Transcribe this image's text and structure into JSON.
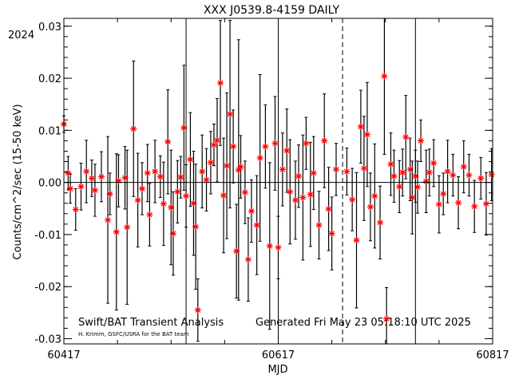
{
  "chart_data": {
    "type": "scatter",
    "title": "XXX J0539.8-4159 DAILY",
    "year_label": "2024",
    "xlabel": "MJD",
    "ylabel": "Counts/cm^2/sec (15-50 keV)",
    "xlim": [
      60417,
      60817
    ],
    "ylim": [
      -0.031,
      0.0315
    ],
    "x_ticks": [
      60417,
      60617,
      60817
    ],
    "x_tick_labels": [
      "60417",
      "60617",
      "60817"
    ],
    "y_ticks": [
      -0.03,
      -0.02,
      -0.01,
      0.0,
      0.01,
      0.02,
      0.03
    ],
    "y_tick_labels": [
      "-0.03",
      "-0.02",
      "-0.01",
      "0.00",
      "0.01",
      "0.02",
      "0.03"
    ],
    "grid": false,
    "marker_color": "#ff0000",
    "errorbar_color": "#000000",
    "reference_lines": [
      {
        "x": 60531,
        "style": "solid"
      },
      {
        "x": 60617,
        "style": "solid"
      },
      {
        "x": 60677,
        "style": "dashed"
      },
      {
        "x": 60745,
        "style": "solid"
      }
    ],
    "series": [
      {
        "x": [
          60417,
          60421,
          60423,
          60428,
          60433,
          60438,
          60443,
          60446,
          60452,
          60458,
          60460,
          60466,
          60468,
          60474,
          60476,
          60482,
          60486,
          60490,
          60495,
          60497,
          60502,
          60507,
          60510,
          60514,
          60517,
          60519,
          60523,
          60526,
          60529,
          60531,
          60535,
          60538,
          60540,
          60542,
          60546,
          60550,
          60554,
          60557,
          60560,
          60563,
          60566,
          60569,
          60572,
          60575,
          60578,
          60580,
          60582,
          60586,
          60589,
          60592,
          60597,
          60600,
          60605,
          60609,
          60614,
          60617,
          60621,
          60625,
          60628,
          60633,
          60636,
          60640,
          60643,
          60647,
          60650,
          60655,
          60660,
          60664,
          60667,
          60671,
          60681,
          60686,
          60690,
          60694,
          60697,
          60700,
          60703,
          60707,
          60712,
          60716,
          60718,
          60722,
          60725,
          60730,
          60733,
          60736,
          60740,
          60742,
          60745,
          60747,
          60750,
          60755,
          60758,
          60762,
          60767,
          60771,
          60775,
          60780,
          60785,
          60790,
          60795,
          60800,
          60806,
          60811,
          60816
        ],
        "y": [
          0.0112,
          0.0018,
          -0.0012,
          -0.0052,
          -0.0008,
          0.0021,
          0.0008,
          -0.0015,
          0.0011,
          -0.0072,
          -0.0022,
          -0.0095,
          0.0003,
          0.0009,
          -0.0086,
          0.0103,
          -0.0034,
          -0.0012,
          0.0018,
          -0.0062,
          0.0021,
          0.0011,
          -0.0041,
          0.0078,
          -0.0048,
          -0.0098,
          -0.0018,
          0.001,
          0.0105,
          -0.0026,
          0.0044,
          -0.004,
          -0.0085,
          -0.0245,
          0.0021,
          0.0005,
          0.0038,
          0.0072,
          0.0081,
          0.0191,
          -0.0025,
          0.0032,
          0.0131,
          0.0069,
          -0.0132,
          0.0024,
          0.003,
          -0.0019,
          -0.0148,
          -0.0055,
          -0.0082,
          0.0047,
          0.0069,
          -0.0122,
          0.0075,
          -0.0125,
          0.0025,
          0.0061,
          -0.0018,
          -0.0034,
          0.0012,
          -0.0029,
          0.0075,
          -0.0023,
          0.0018,
          -0.0082,
          0.008,
          -0.0051,
          -0.0098,
          0.0025,
          0.0021,
          -0.0033,
          -0.0111,
          0.0107,
          0.0027,
          0.0092,
          -0.0047,
          -0.0026,
          -0.0077,
          0.0204,
          -0.0262,
          0.0035,
          0.0012,
          -0.0008,
          0.0019,
          0.0087,
          0.0025,
          -0.0029,
          0.0012,
          -0.0009,
          0.008,
          0.0002,
          0.0019,
          0.0037,
          -0.0042,
          -0.0022,
          0.0021,
          0.0014,
          -0.0039,
          0.003,
          0.0014,
          -0.0046,
          0.0008,
          -0.0041,
          0.0015
        ],
        "error": [
          0.0016,
          0.0032,
          0.0028,
          0.004,
          0.0045,
          0.006,
          0.0035,
          0.005,
          0.0048,
          0.016,
          0.004,
          0.015,
          0.005,
          0.006,
          0.0148,
          0.013,
          0.009,
          0.005,
          0.0055,
          0.006,
          0.006,
          0.004,
          0.008,
          0.01,
          0.011,
          0.008,
          0.006,
          0.004,
          0.012,
          0.006,
          0.009,
          0.01,
          0.012,
          0.006,
          0.007,
          0.006,
          0.006,
          0.004,
          0.008,
          0.012,
          0.011,
          0.014,
          0.018,
          0.007,
          0.009,
          0.025,
          0.006,
          0.006,
          0.008,
          0.006,
          0.0095,
          0.016,
          0.008,
          0.016,
          0.009,
          0.006,
          0.007,
          0.008,
          0.01,
          0.0075,
          0.006,
          0.012,
          0.005,
          0.01,
          0.007,
          0.0065,
          0.009,
          0.008,
          0.007,
          0.005,
          0.0045,
          0.006,
          0.013,
          0.007,
          0.01,
          0.01,
          0.0065,
          0.01,
          0.007,
          0.015,
          0.006,
          0.006,
          0.005,
          0.005,
          0.0045,
          0.008,
          0.006,
          0.007,
          0.005,
          0.005,
          0.004,
          0.006,
          0.0045,
          0.0045,
          0.0055,
          0.004,
          0.006,
          0.004,
          0.005,
          0.005,
          0.004,
          0.005,
          0.004,
          0.006,
          0.005
        ]
      }
    ]
  },
  "footer": {
    "analysis_label": "Swift/BAT Transient Analysis",
    "credit": "H. Krimm, GSFC/USRA for the BAT team",
    "generated": "Generated Fri May 23 05:18:10 UTC 2025"
  }
}
